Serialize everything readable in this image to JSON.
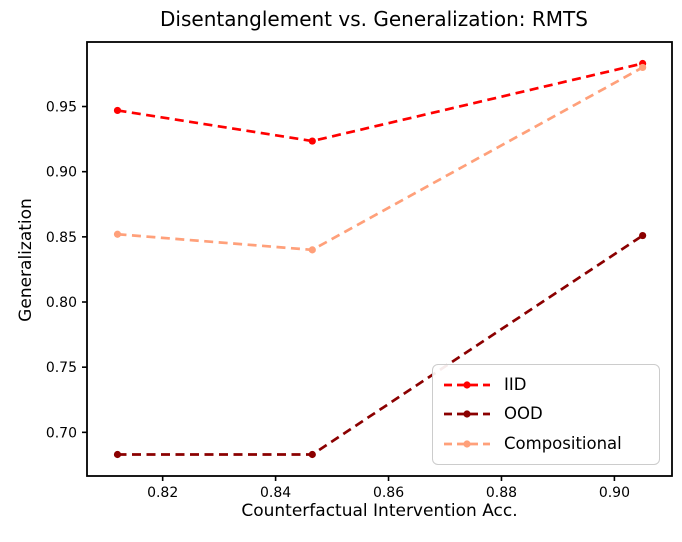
{
  "figure": {
    "background": "#ffffff"
  },
  "chart_data": {
    "type": "line",
    "title": "Disentanglement vs. Generalization: RMTS",
    "xlabel": "Counterfactual Intervention Acc.",
    "ylabel": "Generalization",
    "x": [
      0.812,
      0.8465,
      0.905
    ],
    "series": [
      {
        "name": "IID",
        "color": "#ff0000",
        "values": [
          0.947,
          0.9235,
          0.983
        ]
      },
      {
        "name": "OOD",
        "color": "#8b0000",
        "values": [
          0.683,
          0.683,
          0.851
        ]
      },
      {
        "name": "Compositional",
        "color": "#ffa07a",
        "values": [
          0.852,
          0.84,
          0.98
        ]
      }
    ],
    "line_style": "dashed",
    "marker": "circle",
    "x_ticks": [
      0.82,
      0.84,
      0.86,
      0.88,
      0.9
    ],
    "x_tick_labels": [
      "0.82",
      "0.84",
      "0.86",
      "0.88",
      "0.90"
    ],
    "y_ticks": [
      0.7,
      0.75,
      0.8,
      0.85,
      0.9,
      0.95
    ],
    "y_tick_labels": [
      "0.70",
      "0.75",
      "0.80",
      "0.85",
      "0.90",
      "0.95"
    ],
    "xlim": [
      0.8066,
      0.9102
    ],
    "ylim": [
      0.6665,
      0.9995
    ],
    "grid": false,
    "legend_position": "lower right",
    "axis_color": "#000000",
    "legend_border_color": "#cccccc"
  }
}
